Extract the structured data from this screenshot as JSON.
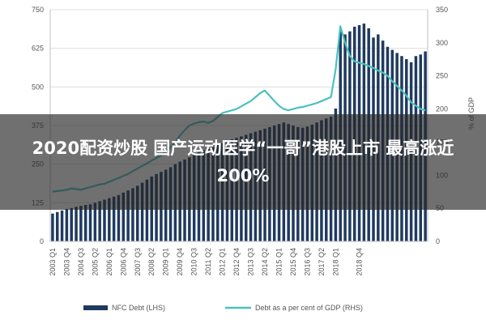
{
  "overlay": {
    "title": "2020配资炒股 国产运动医学“一哥”港股上市 最高涨近200%"
  },
  "colors": {
    "bar": "#1f3a5f",
    "line": "#4cc0c0",
    "background": "#ffffff",
    "overlay": "#262626"
  },
  "chart_data": {
    "type": "bar+line",
    "title": "",
    "left_axis": {
      "label": "",
      "ylim": [
        0,
        750
      ],
      "ticks": [
        "0",
        "125",
        "250",
        "375",
        "500",
        "625",
        "750"
      ]
    },
    "right_axis": {
      "label": "% of GDP",
      "ylim": [
        0,
        350
      ],
      "ticks": [
        "0",
        "50",
        "100",
        "150",
        "200",
        "250",
        "300",
        "350"
      ]
    },
    "x_tick_labels": [
      "2003 Q1",
      "2003 Q4",
      "2004 Q3",
      "2005 Q2",
      "2006 Q1",
      "2006 Q4",
      "2007 Q3",
      "2008 Q2",
      "2009 Q1",
      "2009 Q4",
      "2010 Q3",
      "2011 Q2",
      "2012 Q1",
      "2012 Q4",
      "2013 Q3",
      "2014 Q2",
      "2015 Q1",
      "2015 Q4",
      "2016 Q3",
      "2017 Q2",
      "2018 Q1",
      "2018 Q4"
    ],
    "legend_position": "bottom",
    "series": [
      {
        "name": "NFC Debt (LHS)",
        "type": "bar",
        "axis": "left",
        "values": [
          90,
          95,
          100,
          105,
          108,
          112,
          115,
          118,
          120,
          125,
          130,
          135,
          140,
          145,
          150,
          158,
          165,
          172,
          180,
          190,
          200,
          210,
          218,
          225,
          232,
          240,
          250,
          258,
          265,
          272,
          280,
          288,
          295,
          300,
          305,
          312,
          318,
          325,
          330,
          335,
          340,
          345,
          350,
          355,
          360,
          365,
          370,
          375,
          380,
          385,
          380,
          375,
          370,
          368,
          372,
          378,
          385,
          392,
          398,
          404,
          430,
          680,
          670,
          680,
          695,
          700,
          705,
          690,
          660,
          670,
          650,
          630,
          620,
          610,
          600,
          590,
          580,
          600,
          605,
          615
        ]
      },
      {
        "name": "Debt as a per cent of GDP (RHS)",
        "type": "line",
        "axis": "right",
        "values": [
          75,
          76,
          77,
          78,
          80,
          79,
          78,
          80,
          82,
          84,
          86,
          87,
          90,
          93,
          96,
          99,
          102,
          106,
          110,
          114,
          118,
          122,
          126,
          130,
          136,
          142,
          150,
          160,
          168,
          175,
          178,
          180,
          181,
          179,
          182,
          188,
          194,
          196,
          198,
          200,
          204,
          208,
          212,
          218,
          224,
          228,
          220,
          212,
          205,
          200,
          198,
          200,
          202,
          203,
          205,
          207,
          209,
          212,
          215,
          218,
          260,
          325,
          300,
          280,
          272,
          270,
          268,
          265,
          262,
          258,
          255,
          250,
          242,
          235,
          228,
          220,
          210,
          205,
          200,
          198
        ]
      }
    ]
  }
}
